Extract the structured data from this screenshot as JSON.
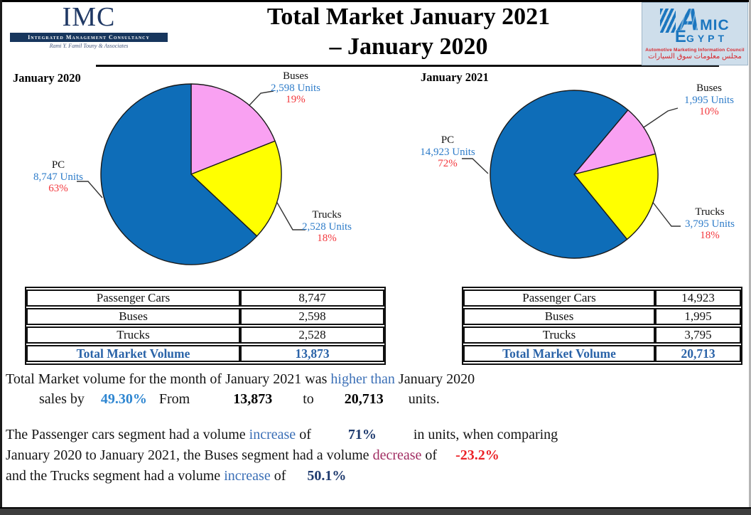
{
  "header": {
    "imc": {
      "acronym": "IMC",
      "bar_text": "Integrated Management Consultancy",
      "tagline": "Rami Y. Famil Touny & Associates"
    },
    "title_line1": "Total Market January 2021",
    "title_line2": "– January 2020",
    "amic": {
      "a": "A",
      "mic": "MIC",
      "e": "E",
      "gypt": "GYPT",
      "council": "Automotive Marketing Information Council",
      "arabic": "مجلس معلومات سوق السيارات"
    }
  },
  "colors": {
    "pie_blue": "#0E6DB8",
    "pie_pink": "#F9A1F2",
    "pie_yellow": "#FFFF00",
    "units_label_blue": "#2E7CC9",
    "pct_label_red": "#F3383D",
    "navy_logo": "#1F3864",
    "table_total_blue": "#2A63A8",
    "increase_blue": "#3B6FB6",
    "rate_blue": "#2E86D1",
    "navy_pct": "#1E3A6E",
    "decrease_magenta": "#A12D62",
    "negative_red": "#EC2227"
  },
  "chart_data": [
    {
      "type": "pie",
      "title": "January 2020",
      "start_angle_deg": 0,
      "total_units": 13873,
      "legend_position": "callout-labels",
      "slices": [
        {
          "label": "Buses",
          "value": 2598,
          "pct": 19,
          "units_text": "2,598 Units",
          "pct_text": "19%",
          "color": "#F9A1F2"
        },
        {
          "label": "Trucks",
          "value": 2528,
          "pct": 18,
          "units_text": "2,528 Units",
          "pct_text": "18%",
          "color": "#FFFF00"
        },
        {
          "label": "PC",
          "value": 8747,
          "pct": 63,
          "units_text": "8,747 Units",
          "pct_text": "63%",
          "color": "#0E6DB8"
        }
      ]
    },
    {
      "type": "pie",
      "title": "January 2021",
      "start_angle_deg": 40,
      "total_units": 20713,
      "legend_position": "callout-labels",
      "slices": [
        {
          "label": "Buses",
          "value": 1995,
          "pct": 10,
          "units_text": "1,995 Units",
          "pct_text": "10%",
          "color": "#F9A1F2"
        },
        {
          "label": "Trucks",
          "value": 3795,
          "pct": 18,
          "units_text": "3,795 Units",
          "pct_text": "18%",
          "color": "#FFFF00"
        },
        {
          "label": "PC",
          "value": 14923,
          "pct": 72,
          "units_text": "14,923 Units",
          "pct_text": "72%",
          "color": "#0E6DB8"
        }
      ]
    }
  ],
  "tables": {
    "left": {
      "rows": [
        {
          "label": "Passenger Cars",
          "value": "8,747"
        },
        {
          "label": "Buses",
          "value": "2,598"
        },
        {
          "label": "Trucks",
          "value": "2,528"
        }
      ],
      "total": {
        "label": "Total Market Volume",
        "value": "13,873"
      }
    },
    "right": {
      "rows": [
        {
          "label": "Passenger Cars",
          "value": "14,923"
        },
        {
          "label": "Buses",
          "value": "1,995"
        },
        {
          "label": "Trucks",
          "value": "3,795"
        }
      ],
      "total": {
        "label": "Total Market Volume",
        "value": "20,713"
      }
    }
  },
  "paragraphs": {
    "p1_l1_a": "Total Market volume for the month of January 2021 was ",
    "p1_l1_b": "higher than",
    "p1_l1_c": " January 2020",
    "p1_l2_sales": "sales by",
    "p1_l2_pct": "49.30%",
    "p1_l2_from": "From",
    "p1_l2_v1": "13,873",
    "p1_l2_to": "to",
    "p1_l2_v2": "20,713",
    "p1_l2_units": "units.",
    "p2_l1_a": "The Passenger cars segment had a volume ",
    "p2_l1_b": "increase",
    "p2_l1_c": " of",
    "p2_l1_pct": "71%",
    "p2_l1_d": "in units, when comparing",
    "p2_l2_a": "January 2020 to January 2021, the Buses segment had a volume ",
    "p2_l2_b": "decrease",
    "p2_l2_c": " of",
    "p2_l2_pct": "-23.2%",
    "p2_l3_a": "and the Trucks segment had a volume ",
    "p2_l3_b": "increase",
    "p2_l3_c": " of",
    "p2_l3_pct": "50.1%"
  }
}
